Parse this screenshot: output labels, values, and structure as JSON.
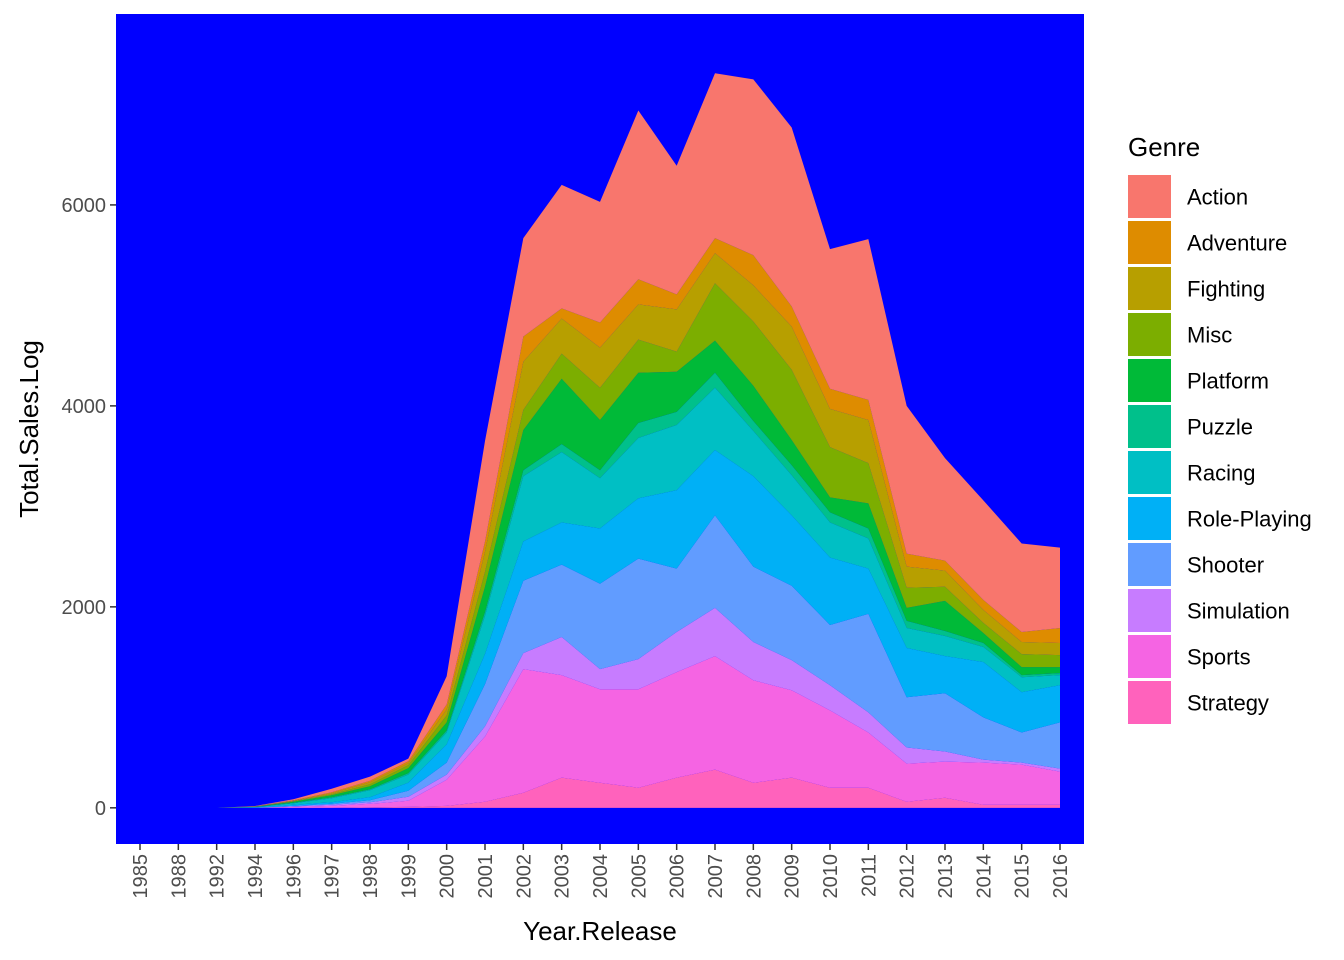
{
  "chart_data": {
    "type": "area",
    "stacked": true,
    "title": "",
    "xlabel": "Year.Release",
    "ylabel": "Total.Sales.Log",
    "ylim": [
      -360,
      7900
    ],
    "yticks": [
      0,
      2000,
      4000,
      6000
    ],
    "ytick_labels": [
      "0",
      "2000",
      "4000",
      "6000"
    ],
    "panel_background": "#0000FF",
    "categories": [
      "1985",
      "1988",
      "1992",
      "1994",
      "1996",
      "1997",
      "1998",
      "1999",
      "2000",
      "2001",
      "2002",
      "2003",
      "2004",
      "2005",
      "2006",
      "2007",
      "2008",
      "2009",
      "2010",
      "2011",
      "2012",
      "2013",
      "2014",
      "2015",
      "2016"
    ],
    "legend": {
      "title": "Genre",
      "position": "right"
    },
    "series": [
      {
        "name": "Strategy",
        "color": "#FF62BC",
        "values": [
          0,
          0,
          0,
          0,
          0,
          0,
          5,
          10,
          20,
          60,
          150,
          300,
          250,
          200,
          300,
          380,
          250,
          300,
          200,
          200,
          60,
          100,
          30,
          30,
          30
        ]
      },
      {
        "name": "Sports",
        "color": "#F564E3",
        "values": [
          0,
          0,
          0,
          0,
          10,
          20,
          35,
          60,
          260,
          650,
          1230,
          1020,
          930,
          980,
          1050,
          1130,
          1020,
          870,
          770,
          550,
          380,
          360,
          420,
          400,
          330
        ]
      },
      {
        "name": "Simulation",
        "color": "#C77CFF",
        "values": [
          0,
          0,
          0,
          0,
          5,
          10,
          15,
          40,
          50,
          100,
          160,
          380,
          200,
          300,
          400,
          480,
          380,
          300,
          250,
          200,
          160,
          100,
          30,
          20,
          30
        ]
      },
      {
        "name": "Shooter",
        "color": "#619CFF",
        "values": [
          0,
          0,
          0,
          0,
          5,
          10,
          20,
          60,
          120,
          420,
          720,
          720,
          850,
          1000,
          630,
          920,
          750,
          740,
          600,
          980,
          500,
          580,
          420,
          300,
          460
        ]
      },
      {
        "name": "Role-Playing",
        "color": "#00B0F6",
        "values": [
          0,
          0,
          0,
          5,
          10,
          15,
          30,
          80,
          180,
          300,
          390,
          420,
          550,
          600,
          780,
          650,
          900,
          700,
          670,
          450,
          490,
          370,
          550,
          400,
          370
        ]
      },
      {
        "name": "Racing",
        "color": "#00BFC4",
        "values": [
          0,
          0,
          0,
          2,
          15,
          40,
          70,
          80,
          120,
          380,
          650,
          700,
          500,
          600,
          650,
          620,
          450,
          400,
          350,
          300,
          200,
          200,
          150,
          150,
          100
        ]
      },
      {
        "name": "Puzzle",
        "color": "#00C08B",
        "values": [
          0,
          0,
          0,
          1,
          5,
          10,
          10,
          15,
          20,
          40,
          60,
          80,
          80,
          150,
          130,
          150,
          100,
          100,
          100,
          100,
          70,
          50,
          40,
          20,
          20
        ]
      },
      {
        "name": "Platform",
        "color": "#00BA38",
        "values": [
          0,
          0,
          0,
          2,
          10,
          20,
          30,
          50,
          80,
          250,
          400,
          650,
          500,
          500,
          400,
          320,
          350,
          250,
          150,
          250,
          130,
          300,
          100,
          80,
          60
        ]
      },
      {
        "name": "Misc",
        "color": "#7CAE00",
        "values": [
          0,
          0,
          0,
          2,
          5,
          10,
          20,
          30,
          70,
          150,
          200,
          250,
          320,
          330,
          200,
          570,
          640,
          700,
          500,
          400,
          200,
          140,
          100,
          130,
          120
        ]
      },
      {
        "name": "Fighting",
        "color": "#B79F00",
        "values": [
          0,
          0,
          0,
          2,
          5,
          10,
          20,
          20,
          60,
          200,
          480,
          350,
          400,
          350,
          420,
          300,
          360,
          430,
          380,
          430,
          210,
          160,
          130,
          120,
          120
        ]
      },
      {
        "name": "Adventure",
        "color": "#DE8C00",
        "values": [
          0,
          0,
          0,
          2,
          5,
          10,
          15,
          20,
          50,
          100,
          250,
          100,
          250,
          250,
          150,
          150,
          300,
          200,
          200,
          200,
          130,
          100,
          100,
          100,
          150
        ]
      },
      {
        "name": "Action",
        "color": "#F8766D",
        "values": [
          0,
          0,
          0,
          2,
          10,
          35,
          40,
          25,
          280,
          1000,
          980,
          1230,
          1200,
          1680,
          1280,
          1640,
          1750,
          1780,
          1390,
          1600,
          1470,
          1020,
          990,
          880,
          800
        ]
      }
    ]
  }
}
